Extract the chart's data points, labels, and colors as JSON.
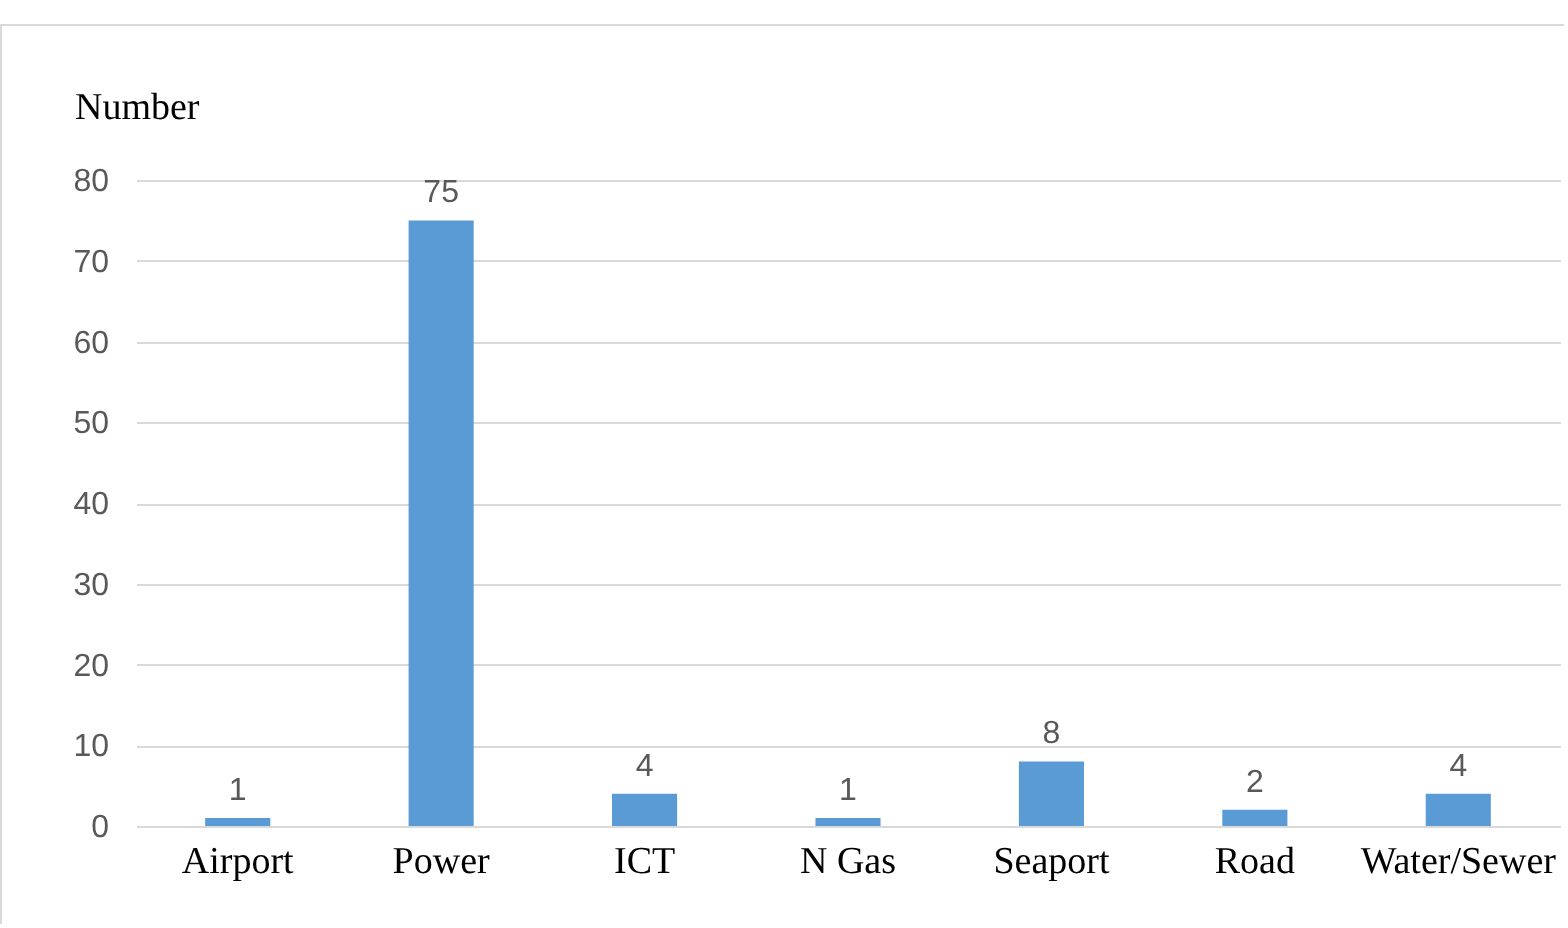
{
  "chart_data": {
    "type": "bar",
    "ylabel": "Number",
    "categories": [
      "Airport",
      "Power",
      "ICT",
      "N Gas",
      "Seaport",
      "Road",
      "Water/Sewer"
    ],
    "values": [
      1,
      75,
      4,
      1,
      8,
      2,
      4
    ],
    "color": "#5b9bd5",
    "ylim": [
      0,
      80
    ],
    "yticks": [
      0,
      10,
      20,
      30,
      40,
      50,
      60,
      70,
      80
    ],
    "grid": "y",
    "data_labels": true
  }
}
